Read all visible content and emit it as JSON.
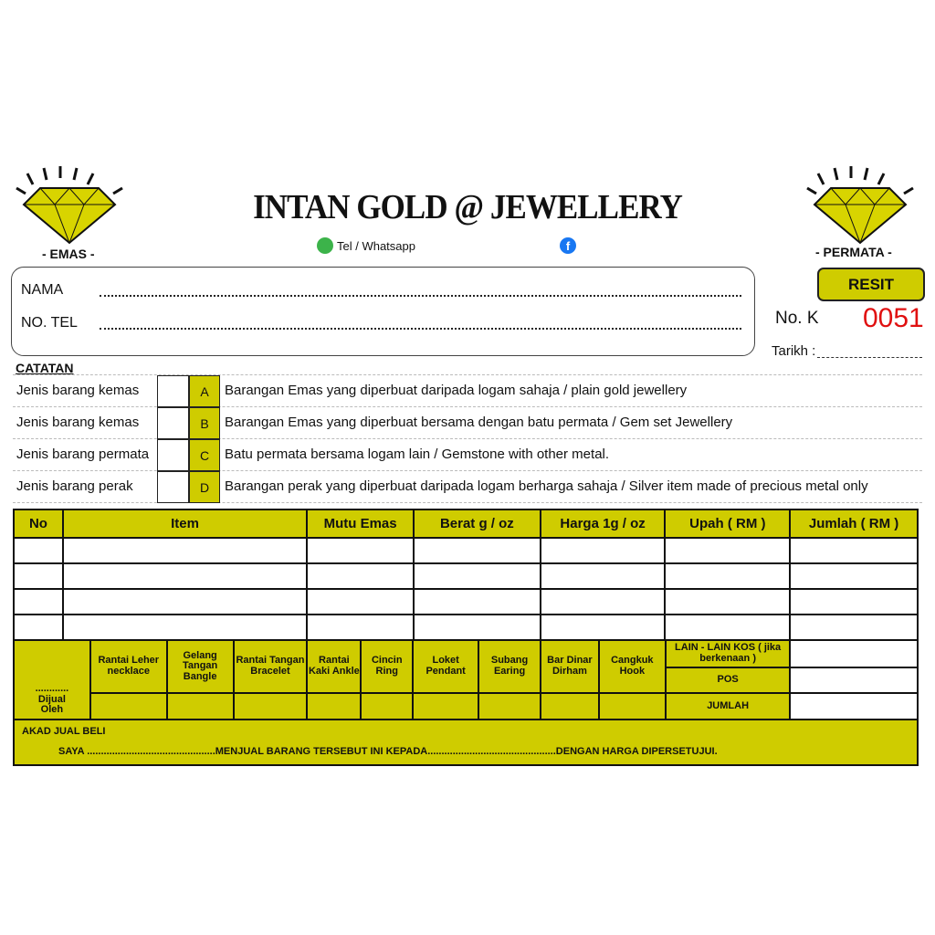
{
  "header": {
    "title": "INTAN GOLD @ JEWELLERY",
    "left_caption": "- EMAS -",
    "right_caption": "- PERMATA -",
    "contact_label": "Tel / Whatsapp"
  },
  "customer": {
    "name_label": "NAMA",
    "phone_label": "NO. TEL",
    "colon": ":"
  },
  "receipt": {
    "button": "RESIT",
    "no_label": "No. K",
    "number": "0051",
    "date_label": "Tarikh :"
  },
  "notes": {
    "title": "CATATAN",
    "rows": [
      {
        "label": "Jenis barang kemas",
        "code": "A",
        "desc": "Barangan Emas yang diperbuat daripada logam sahaja / plain gold jewellery"
      },
      {
        "label": "Jenis barang kemas",
        "code": "B",
        "desc": "Barangan Emas yang diperbuat bersama dengan batu permata / Gem set Jewellery"
      },
      {
        "label": "Jenis barang permata",
        "code": "C",
        "desc": "Batu permata bersama logam lain / Gemstone with other metal."
      },
      {
        "label": "Jenis barang perak",
        "code": "D",
        "desc": "Barangan perak yang diperbuat daripada logam berharga sahaja / Silver item made of precious metal only"
      }
    ]
  },
  "table": {
    "headers": [
      "No",
      "Item",
      "Mutu Emas",
      "Berat g / oz",
      "Harga 1g / oz",
      "Upah ( RM )",
      "Jumlah ( RM )"
    ]
  },
  "categories": {
    "sold_by_dots": "............",
    "sold_by": "Dijual Oleh",
    "items": [
      "Rantai Leher necklace",
      "Gelang Tangan Bangle",
      "Rantai Tangan Bracelet",
      "Rantai Kaki Ankle",
      "Cincin Ring",
      "Loket Pendant",
      "Subang Earing",
      "Bar Dinar Dirham",
      "Cangkuk Hook"
    ],
    "other_cost": "LAIN - LAIN KOS ( jika berkenaan )",
    "postage": "POS",
    "total": "JUMLAH"
  },
  "akad": {
    "title": "AKAD JUAL BELI",
    "text": "SAYA ..............................................MENJUAL BARANG TERSEBUT INI KEPADA..............................................DENGAN HARGA DIPERSETUJUI."
  },
  "colors": {
    "accent": "#cfcc00",
    "number": "#e01010"
  }
}
